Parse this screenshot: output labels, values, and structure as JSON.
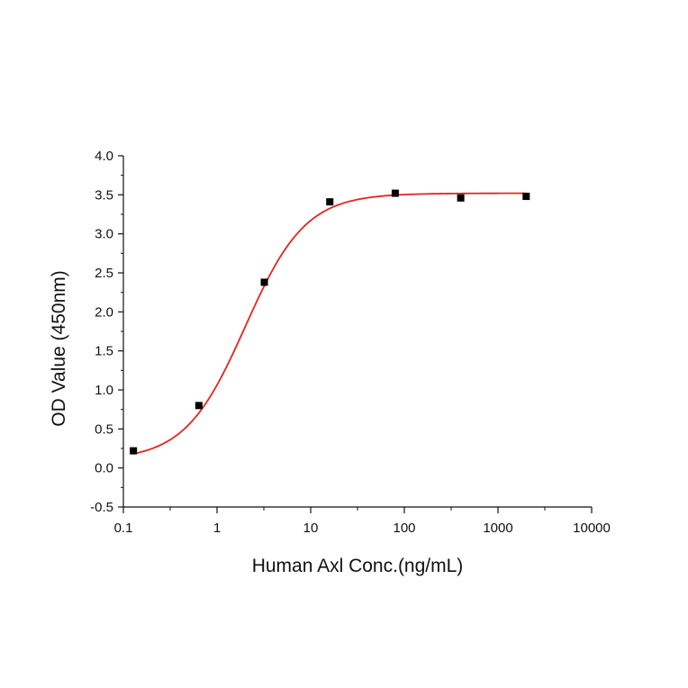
{
  "chart_data": {
    "type": "scatter",
    "title": "",
    "xlabel": "Human Axl Conc.(ng/mL)",
    "ylabel": "OD Value (450nm)",
    "xscale": "log",
    "xlim": [
      0.1,
      10000
    ],
    "ylim": [
      -0.5,
      4.0
    ],
    "x_ticks": [
      {
        "value": 0.1,
        "label": "0.1"
      },
      {
        "value": 1,
        "label": "1"
      },
      {
        "value": 10,
        "label": "10"
      },
      {
        "value": 100,
        "label": "100"
      },
      {
        "value": 1000,
        "label": "1000"
      },
      {
        "value": 10000,
        "label": "10000"
      }
    ],
    "y_ticks": [
      {
        "value": -0.5,
        "label": "-0.5"
      },
      {
        "value": 0.0,
        "label": "0.0"
      },
      {
        "value": 0.5,
        "label": "0.5"
      },
      {
        "value": 1.0,
        "label": "1.0"
      },
      {
        "value": 1.5,
        "label": "1.5"
      },
      {
        "value": 2.0,
        "label": "2.0"
      },
      {
        "value": 2.5,
        "label": "2.5"
      },
      {
        "value": 3.0,
        "label": "3.0"
      },
      {
        "value": 3.5,
        "label": "3.5"
      },
      {
        "value": 4.0,
        "label": "4.0"
      }
    ],
    "grid": false,
    "series": [
      {
        "marker": "square",
        "color": "#000000",
        "x": [
          0.128,
          0.64,
          3.2,
          16,
          80,
          400,
          2000
        ],
        "y": [
          0.22,
          0.8,
          2.38,
          3.41,
          3.52,
          3.46,
          3.48
        ]
      }
    ],
    "fit_curve": {
      "model": "4PL",
      "color": "#e8231f",
      "bottom": 0.1,
      "top": 3.52,
      "ec50": 2.0,
      "hill": 1.35
    }
  }
}
